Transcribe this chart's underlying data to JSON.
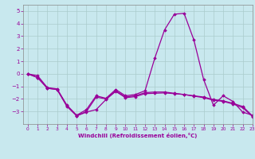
{
  "x": [
    0,
    1,
    2,
    3,
    4,
    5,
    6,
    7,
    8,
    9,
    10,
    11,
    12,
    13,
    14,
    15,
    16,
    17,
    18,
    19,
    20,
    21,
    22,
    23
  ],
  "line1": [
    0.0,
    -0.15,
    -1.1,
    -1.2,
    -2.5,
    -3.3,
    -2.85,
    -1.75,
    -1.95,
    -1.25,
    -1.75,
    -1.65,
    -1.35,
    1.25,
    3.5,
    4.75,
    4.82,
    2.7,
    -0.45,
    -2.5,
    -1.75,
    -2.2,
    -3.05,
    -3.3
  ],
  "line2": [
    0.0,
    -0.3,
    -1.15,
    -1.25,
    -2.55,
    -3.35,
    -3.0,
    -1.85,
    -2.0,
    -1.35,
    -1.85,
    -1.75,
    -1.5,
    -1.45,
    -1.45,
    -1.55,
    -1.65,
    -1.75,
    -1.85,
    -2.05,
    -2.15,
    -2.35,
    -2.6,
    -3.35
  ],
  "line3": [
    0.0,
    -0.3,
    -1.15,
    -1.25,
    -2.6,
    -3.35,
    -3.05,
    -2.85,
    -2.05,
    -1.4,
    -1.9,
    -1.82,
    -1.58,
    -1.55,
    -1.52,
    -1.58,
    -1.65,
    -1.78,
    -1.9,
    -2.1,
    -2.2,
    -2.4,
    -2.7,
    -3.4
  ],
  "color": "#990099",
  "bg_color": "#c8e8ee",
  "grid_color": "#aacccc",
  "xlabel": "Windchill (Refroidissement éolien,°C)",
  "ylim": [
    -4,
    5.5
  ],
  "xlim": [
    -0.5,
    23
  ],
  "yticks": [
    -3,
    -2,
    -1,
    0,
    1,
    2,
    3,
    4,
    5
  ],
  "xticks": [
    0,
    1,
    2,
    3,
    4,
    5,
    6,
    7,
    8,
    9,
    10,
    11,
    12,
    13,
    14,
    15,
    16,
    17,
    18,
    19,
    20,
    21,
    22,
    23
  ],
  "marker": "D",
  "markersize": 1.8,
  "linewidth": 0.9
}
